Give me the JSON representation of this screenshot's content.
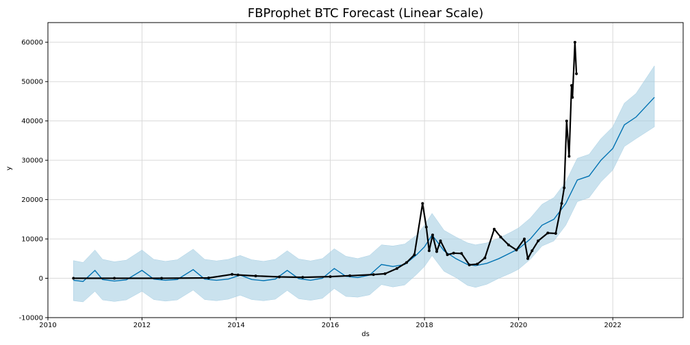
{
  "chart_data": {
    "type": "line",
    "title": "FBProphet BTC Forecast (Linear Scale)",
    "xlabel": "ds",
    "ylabel": "y",
    "xlim": [
      "2010-01-01",
      "2023-07-01"
    ],
    "ylim": [
      -10000,
      65000
    ],
    "x_ticks": [
      "2010",
      "2012",
      "2014",
      "2016",
      "2018",
      "2020",
      "2022"
    ],
    "y_ticks": [
      -10000,
      0,
      10000,
      20000,
      30000,
      40000,
      50000,
      60000
    ],
    "grid": true,
    "colors": {
      "forecast": "#0072b2",
      "interval_fill": "#a6cee3",
      "observed": "#000000",
      "grid": "#d9d9d9"
    },
    "series": [
      {
        "kind": "forecast",
        "x": [
          "2010-07-18",
          "2010-10-01",
          "2011-01-01",
          "2011-03-01",
          "2011-06-01",
          "2011-09-01",
          "2012-01-01",
          "2012-04-01",
          "2012-07-01",
          "2012-10-01",
          "2013-02-01",
          "2013-05-01",
          "2013-08-01",
          "2013-11-01",
          "2014-02-01",
          "2014-05-01",
          "2014-08-01",
          "2014-11-01",
          "2015-02-01",
          "2015-05-01",
          "2015-08-01",
          "2015-11-01",
          "2016-02-01",
          "2016-05-01",
          "2016-08-01",
          "2016-11-01",
          "2017-02-01",
          "2017-05-01",
          "2017-08-01",
          "2017-11-01",
          "2018-01-01",
          "2018-03-01",
          "2018-06-01",
          "2018-09-01",
          "2018-12-01",
          "2019-02-01",
          "2019-05-01",
          "2019-08-01",
          "2019-11-01",
          "2020-01-01",
          "2020-04-01",
          "2020-07-01",
          "2020-10-01",
          "2021-01-01",
          "2021-04-01",
          "2021-07-01",
          "2021-10-01",
          "2022-01-01",
          "2022-04-01",
          "2022-07-01",
          "2022-11-20"
        ],
        "y": [
          -500,
          -800,
          2000,
          -300,
          -700,
          -400,
          2000,
          -200,
          -500,
          -300,
          2200,
          -200,
          -500,
          -200,
          800,
          -300,
          -600,
          -200,
          2000,
          -100,
          -500,
          0,
          2500,
          500,
          200,
          800,
          3500,
          3000,
          3500,
          6000,
          8000,
          11000,
          7000,
          5000,
          3500,
          3200,
          3800,
          5000,
          6500,
          7500,
          10000,
          13500,
          15000,
          19000,
          25000,
          26000,
          30000,
          33000,
          39000,
          41000,
          46000
        ]
      },
      {
        "kind": "interval",
        "x": [
          "2010-07-18",
          "2010-10-01",
          "2011-01-01",
          "2011-03-01",
          "2011-06-01",
          "2011-09-01",
          "2012-01-01",
          "2012-04-01",
          "2012-07-01",
          "2012-10-01",
          "2013-02-01",
          "2013-05-01",
          "2013-08-01",
          "2013-11-01",
          "2014-02-01",
          "2014-05-01",
          "2014-08-01",
          "2014-11-01",
          "2015-02-01",
          "2015-05-01",
          "2015-08-01",
          "2015-11-01",
          "2016-02-01",
          "2016-05-01",
          "2016-08-01",
          "2016-11-01",
          "2017-02-01",
          "2017-05-01",
          "2017-08-01",
          "2017-11-01",
          "2018-01-01",
          "2018-03-01",
          "2018-06-01",
          "2018-09-01",
          "2018-12-01",
          "2019-02-01",
          "2019-05-01",
          "2019-08-01",
          "2019-11-01",
          "2020-01-01",
          "2020-04-01",
          "2020-07-01",
          "2020-10-01",
          "2021-01-01",
          "2021-04-01",
          "2021-07-01",
          "2021-10-01",
          "2022-01-01",
          "2022-04-01",
          "2022-07-01",
          "2022-11-20"
        ],
        "upper": [
          4500,
          4000,
          7200,
          4800,
          4200,
          4600,
          7200,
          4800,
          4300,
          4700,
          7400,
          4800,
          4400,
          4800,
          5800,
          4700,
          4300,
          4800,
          7000,
          4900,
          4400,
          5000,
          7500,
          5600,
          5000,
          5800,
          8500,
          8200,
          8700,
          11000,
          13500,
          16500,
          12200,
          10500,
          9000,
          8500,
          9000,
          10200,
          11700,
          12800,
          15300,
          18800,
          20500,
          24500,
          30500,
          31500,
          35500,
          38500,
          44500,
          47000,
          54000
        ],
        "lower": [
          -5700,
          -6000,
          -3300,
          -5500,
          -5900,
          -5500,
          -3300,
          -5400,
          -5800,
          -5500,
          -3000,
          -5400,
          -5700,
          -5300,
          -4300,
          -5400,
          -5700,
          -5300,
          -3100,
          -5200,
          -5600,
          -5100,
          -2600,
          -4600,
          -4800,
          -4200,
          -1600,
          -2200,
          -1700,
          1000,
          3000,
          5800,
          1800,
          200,
          -1800,
          -2300,
          -1500,
          0,
          1300,
          2300,
          4800,
          8200,
          9500,
          13500,
          19500,
          20500,
          24500,
          27500,
          33500,
          35500,
          38500
        ]
      },
      {
        "kind": "observed",
        "x": [
          "2010-07-18",
          "2011-06-01",
          "2012-06-01",
          "2013-06-01",
          "2013-11-30",
          "2014-01-15",
          "2014-06-01",
          "2014-12-01",
          "2015-06-01",
          "2016-01-01",
          "2016-06-01",
          "2016-12-01",
          "2017-03-01",
          "2017-06-01",
          "2017-08-15",
          "2017-10-15",
          "2017-12-17",
          "2018-01-15",
          "2018-02-06",
          "2018-03-05",
          "2018-04-06",
          "2018-05-05",
          "2018-06-28",
          "2018-08-15",
          "2018-10-15",
          "2018-12-15",
          "2019-02-15",
          "2019-04-15",
          "2019-06-26",
          "2019-08-15",
          "2019-10-15",
          "2019-12-15",
          "2020-02-15",
          "2020-03-13",
          "2020-04-15",
          "2020-06-01",
          "2020-08-15",
          "2020-10-15",
          "2020-11-30",
          "2020-12-20",
          "2021-01-08",
          "2021-01-27",
          "2021-02-15",
          "2021-02-22",
          "2021-03-13",
          "2021-03-25"
        ],
        "y": [
          0,
          10,
          8,
          100,
          1000,
          850,
          600,
          350,
          250,
          430,
          650,
          950,
          1150,
          2500,
          4000,
          6000,
          19000,
          13000,
          7000,
          11000,
          6800,
          9500,
          6000,
          6400,
          6300,
          3400,
          3600,
          5200,
          12500,
          10500,
          8500,
          7200,
          10000,
          5000,
          7000,
          9500,
          11500,
          11400,
          19000,
          23000,
          40000,
          31000,
          49000,
          46000,
          60000,
          52000
        ]
      }
    ]
  }
}
